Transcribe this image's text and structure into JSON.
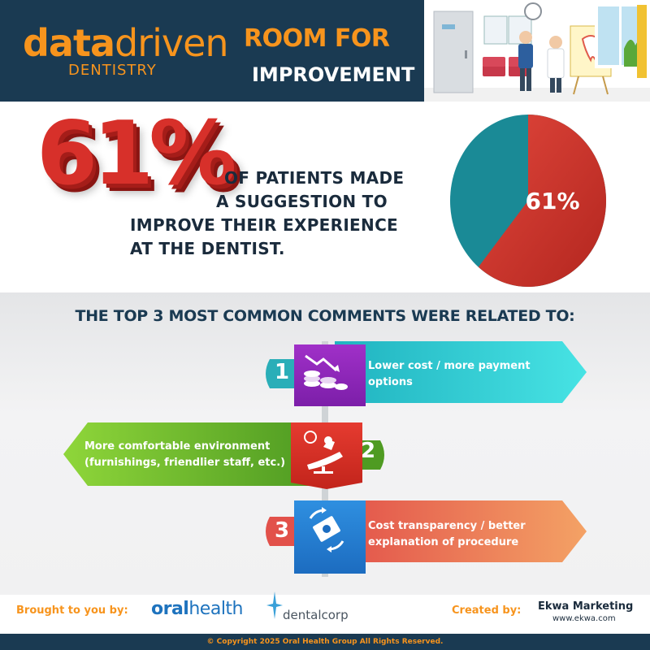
{
  "header": {
    "logo_word1": "data",
    "logo_word2": "driven",
    "logo_sub": "DENTISTRY",
    "title_line1": "ROOM FOR",
    "title_line2": "IMPROVEMENT"
  },
  "stat": {
    "big_percent": "61%",
    "line1": "OF PATIENTS MADE",
    "line2": "A SUGGESTION TO",
    "line3": "IMPROVE THEIR EXPERIENCE",
    "line4": "AT THE DENTIST.",
    "pie_label": "61%",
    "pie_fraction": 0.61,
    "pie_color_main": "#d9362e",
    "pie_color_rest": "#1a8a96"
  },
  "comments": {
    "heading": "THE TOP 3 MOST COMMON COMMENTS WERE RELATED TO:",
    "items": [
      {
        "number": "1",
        "line1": "Lower cost / more payment",
        "line2": "options",
        "icon": "coins-down-icon",
        "color": "#2ec4cc"
      },
      {
        "number": "2",
        "line1": "More comfortable environment",
        "line2": "(furnishings, friendlier staff, etc.)",
        "icon": "dental-chair-icon",
        "color": "#6cb52d"
      },
      {
        "number": "3",
        "line1": "Cost transparency / better",
        "line2": "explanation of procedure",
        "icon": "money-exchange-icon",
        "color": "#ef6b4b"
      }
    ]
  },
  "footer": {
    "brought_label": "Brought to you by:",
    "sponsor1_a": "oral",
    "sponsor1_b": "health",
    "sponsor2": "dentalcorp",
    "created_label": "Created by:",
    "creator": "Ekwa Marketing",
    "creator_url": "www.ekwa.com",
    "copyright": "© Copyright 2025 Oral Health Group All Rights Reserved."
  }
}
